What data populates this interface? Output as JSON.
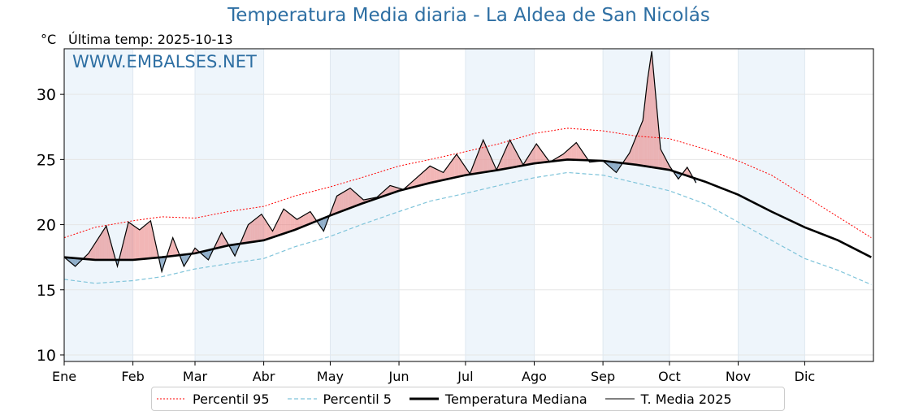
{
  "title": "Temperatura Media diaria - La Aldea de San Nicolás",
  "unit": "°C",
  "last_temp_label": "Última temp: 2025-10-13",
  "watermark": "WWW.EMBALSES.NET",
  "legend": {
    "p95": "Percentil 95",
    "p5": "Percentil 5",
    "median": "Temperatura Mediana",
    "current": "T. Media 2025"
  },
  "colors": {
    "title": "#2e6fa3",
    "p95": "#ff0000",
    "p5": "#7fc4da",
    "median": "#000000",
    "current": "#000000",
    "above": "#e87a7a",
    "below": "#6f96b8",
    "band": "#e8f1fa"
  },
  "chart_data": {
    "type": "line",
    "title": "Temperatura Media diaria - La Aldea de San Nicolás",
    "ylabel": "°C",
    "ylim": [
      9.5,
      33.5
    ],
    "xlim": [
      1,
      366
    ],
    "yticks": [
      10,
      15,
      20,
      25,
      30
    ],
    "months": [
      "Ene",
      "Feb",
      "Mar",
      "Abr",
      "May",
      "Jun",
      "Jul",
      "Ago",
      "Sep",
      "Oct",
      "Nov",
      "Dic"
    ],
    "month_start_days": [
      1,
      32,
      60,
      91,
      121,
      152,
      182,
      213,
      244,
      274,
      305,
      335
    ],
    "series": [
      {
        "name": "Percentil 95",
        "days": [
          1,
          15,
          32,
          45,
          60,
          75,
          91,
          105,
          121,
          135,
          152,
          166,
          182,
          197,
          213,
          228,
          244,
          259,
          274,
          290,
          305,
          320,
          335,
          350,
          365
        ],
        "values": [
          19.0,
          19.8,
          20.3,
          20.6,
          20.5,
          21.0,
          21.4,
          22.2,
          22.9,
          23.6,
          24.5,
          25.0,
          25.6,
          26.2,
          27.0,
          27.4,
          27.2,
          26.8,
          26.6,
          25.8,
          24.9,
          23.8,
          22.2,
          20.6,
          19.0
        ]
      },
      {
        "name": "Percentil 5",
        "days": [
          1,
          15,
          32,
          45,
          60,
          75,
          91,
          105,
          121,
          135,
          152,
          166,
          182,
          197,
          213,
          228,
          244,
          259,
          274,
          290,
          305,
          320,
          335,
          350,
          365
        ],
        "values": [
          15.8,
          15.5,
          15.7,
          16.0,
          16.6,
          17.0,
          17.4,
          18.3,
          19.1,
          20.0,
          21.0,
          21.8,
          22.4,
          23.0,
          23.6,
          24.0,
          23.8,
          23.2,
          22.6,
          21.6,
          20.2,
          18.8,
          17.4,
          16.5,
          15.4
        ]
      },
      {
        "name": "Temperatura Mediana",
        "days": [
          1,
          15,
          32,
          45,
          60,
          75,
          91,
          105,
          121,
          135,
          152,
          166,
          182,
          197,
          213,
          228,
          244,
          259,
          274,
          290,
          305,
          320,
          335,
          350,
          365
        ],
        "values": [
          17.5,
          17.3,
          17.3,
          17.5,
          17.8,
          18.4,
          18.8,
          19.6,
          20.7,
          21.6,
          22.6,
          23.2,
          23.8,
          24.2,
          24.7,
          25.0,
          24.9,
          24.6,
          24.2,
          23.3,
          22.3,
          21.0,
          19.8,
          18.8,
          17.5
        ]
      },
      {
        "name": "T. Media 2025",
        "days": [
          1,
          6,
          12,
          20,
          25,
          30,
          35,
          40,
          45,
          50,
          55,
          60,
          66,
          72,
          78,
          84,
          90,
          95,
          100,
          106,
          112,
          118,
          124,
          130,
          136,
          142,
          148,
          154,
          160,
          166,
          172,
          178,
          184,
          190,
          196,
          202,
          208,
          214,
          220,
          226,
          232,
          238,
          244,
          250,
          256,
          262,
          264,
          266,
          270,
          274,
          278,
          282,
          286
        ],
        "values": [
          17.5,
          16.8,
          17.8,
          19.9,
          16.8,
          20.2,
          19.6,
          20.3,
          16.4,
          19.0,
          16.8,
          18.2,
          17.3,
          19.4,
          17.6,
          20.0,
          20.8,
          19.5,
          21.2,
          20.4,
          21.0,
          19.5,
          22.2,
          22.8,
          21.9,
          22.1,
          23.0,
          22.7,
          23.6,
          24.5,
          24.0,
          25.4,
          23.9,
          26.5,
          24.2,
          26.5,
          24.6,
          26.2,
          24.8,
          25.4,
          26.3,
          24.8,
          24.9,
          24.0,
          25.5,
          28.0,
          31.0,
          33.3,
          25.8,
          24.5,
          23.5,
          24.4,
          23.2
        ]
      }
    ],
    "legend_position": "bottom-center"
  }
}
